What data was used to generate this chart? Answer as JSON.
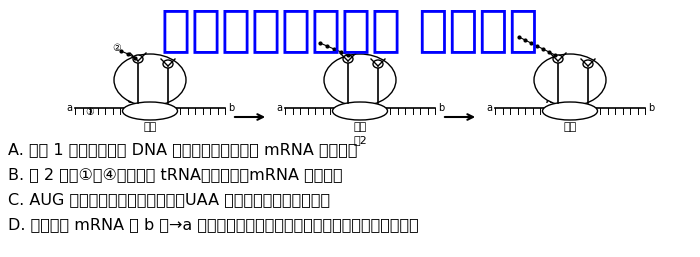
{
  "watermark_text": "微信公众号关注： 趣找答案",
  "watermark_color": "#0000ff",
  "watermark_fontsize": 36,
  "lines": [
    "A. 由图 1 可知，基因的 DNA 分子并没有完全参与 mRNA 转录过程",
    "B. 图 2 中的①～④依次表示 tRNA、核糖体、mRNA 和多肽链",
    "C. AUG 为启动子，可决定氨基酸，UAA 为终止子，不决定氨基酸",
    "D. 翻译是从 mRNA 的 b 端→a 端进行的，翻译过程需要酶的催化，是一个耗能过程"
  ],
  "fig2_label": "图2",
  "background_color": "#ffffff",
  "fig_width": 7.0,
  "fig_height": 2.57,
  "dpi": 100
}
